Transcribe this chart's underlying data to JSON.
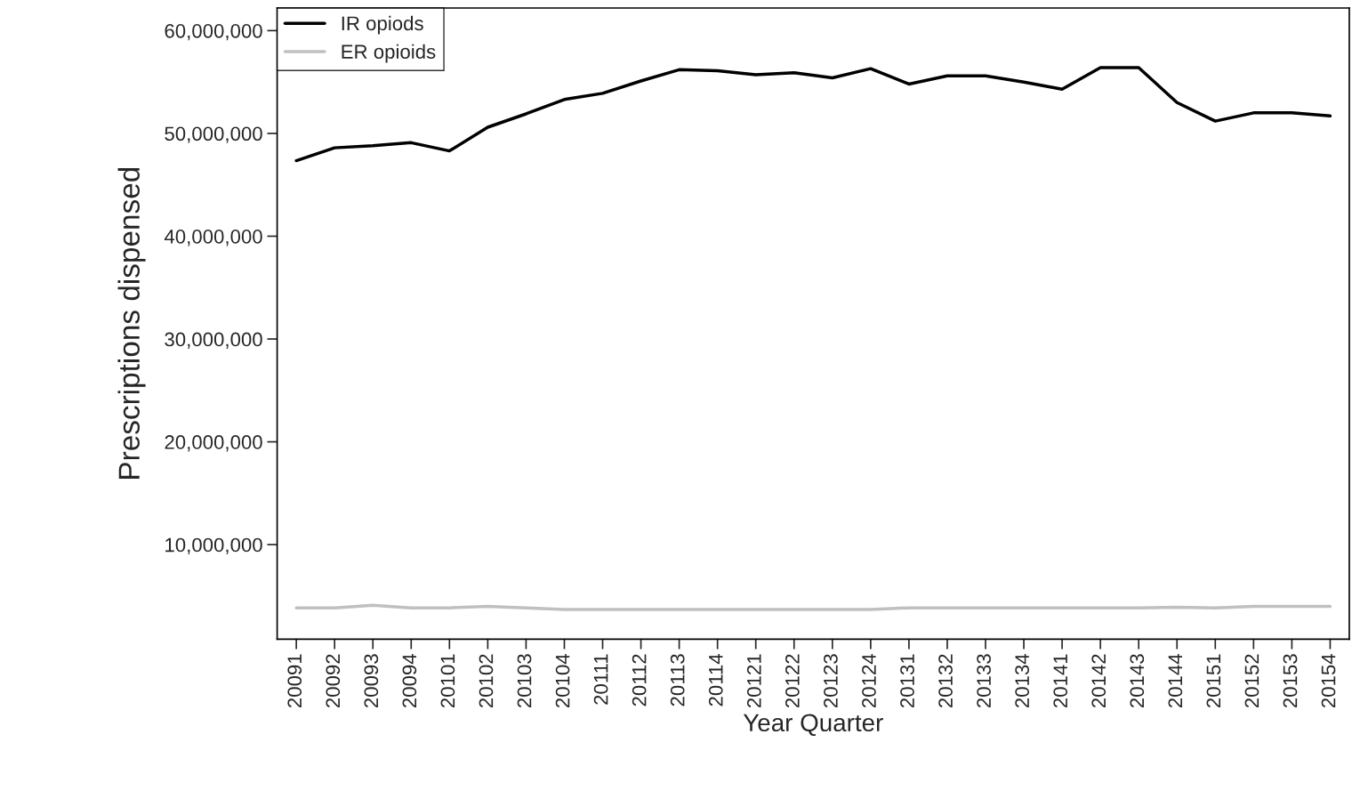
{
  "chart_data": {
    "type": "line",
    "xlabel": "Year Quarter",
    "ylabel": "Prescriptions dispensed",
    "categories": [
      "20091",
      "20092",
      "20093",
      "20094",
      "20101",
      "20102",
      "20103",
      "20104",
      "20111",
      "20112",
      "20113",
      "20114",
      "20121",
      "20122",
      "20123",
      "20124",
      "20131",
      "20132",
      "20133",
      "20134",
      "20141",
      "20142",
      "20143",
      "20144",
      "20151",
      "20152",
      "20153",
      "20154"
    ],
    "series": [
      {
        "name": "IR opiods",
        "color": "#000000",
        "values": [
          47350000,
          48600000,
          48800000,
          49100000,
          48300000,
          50600000,
          51900000,
          53300000,
          53900000,
          55100000,
          56200000,
          56100000,
          55700000,
          55900000,
          55400000,
          56300000,
          54800000,
          55600000,
          55600000,
          55000000,
          54300000,
          56400000,
          56400000,
          53000000,
          51200000,
          52000000,
          52000000,
          51700000
        ]
      },
      {
        "name": "ER opioids",
        "color": "#c0c0c0",
        "values": [
          3850000,
          3850000,
          4100000,
          3850000,
          3850000,
          4000000,
          3850000,
          3700000,
          3700000,
          3700000,
          3700000,
          3700000,
          3700000,
          3700000,
          3700000,
          3700000,
          3850000,
          3850000,
          3850000,
          3850000,
          3850000,
          3850000,
          3850000,
          3900000,
          3850000,
          4000000,
          4000000,
          4000000
        ]
      }
    ],
    "ylim": [
      800000,
      62200000
    ],
    "yticks": [
      {
        "value": 10000000,
        "label": "10,000,000"
      },
      {
        "value": 20000000,
        "label": "20,000,000"
      },
      {
        "value": 30000000,
        "label": "30,000,000"
      },
      {
        "value": 40000000,
        "label": "40,000,000"
      },
      {
        "value": 50000000,
        "label": "50,000,000"
      },
      {
        "value": 60000000,
        "label": "60,000,000"
      }
    ],
    "legend": "top left",
    "grid": false
  }
}
